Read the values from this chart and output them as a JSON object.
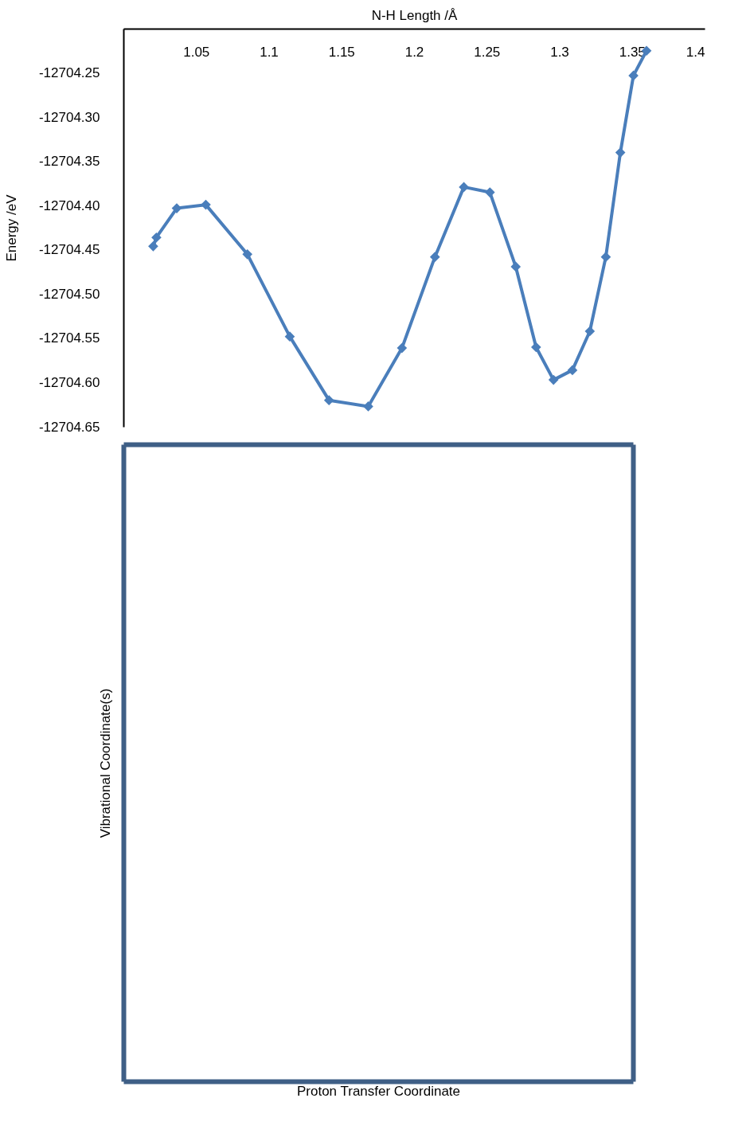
{
  "chart_data": [
    {
      "type": "line",
      "xlabel": "N-H Length /Å",
      "ylabel": "Energy /eV",
      "x": [
        1.0205,
        1.0227,
        1.0367,
        1.0567,
        1.0853,
        1.1145,
        1.1415,
        1.1685,
        1.1917,
        1.2144,
        1.2343,
        1.2522,
        1.27,
        1.284,
        1.296,
        1.309,
        1.321,
        1.332,
        1.342,
        1.351,
        1.36
      ],
      "series": [
        {
          "color": "#4a7ebb",
          "values": [
            -12704.446,
            -12704.436,
            -12704.403,
            -12704.399,
            -12704.455,
            -12704.548,
            -12704.62,
            -12704.627,
            -12704.561,
            -12704.458,
            -12704.379,
            -12704.385,
            -12704.469,
            -12704.56,
            -12704.597,
            -12704.586,
            -12704.542,
            -12704.458,
            -12704.34,
            -12704.253,
            -12704.225
          ]
        }
      ],
      "xlim": [
        1.0,
        1.4
      ],
      "xticks": [
        1.05,
        1.1,
        1.15,
        1.2,
        1.25,
        1.3,
        1.35,
        1.4
      ],
      "ylim": [
        -12704.65,
        -12704.2
      ],
      "yticks": [
        -12704.25,
        {
          "value": -12704.3,
          "label": "-12704.30"
        },
        -12704.35,
        {
          "value": -12704.4,
          "label": "-12704.40"
        },
        -12704.45,
        {
          "value": -12704.5,
          "label": "-12704.50"
        },
        -12704.55,
        {
          "value": -12704.6,
          "label": "-12704.60"
        },
        -12704.65
      ],
      "marker": "diamond",
      "line_style": "solid",
      "grid": false
    },
    {
      "type": "other",
      "xlabel": "Proton Transfer Coordinate",
      "ylabel": "Vibrational Coordinate(s)"
    }
  ]
}
